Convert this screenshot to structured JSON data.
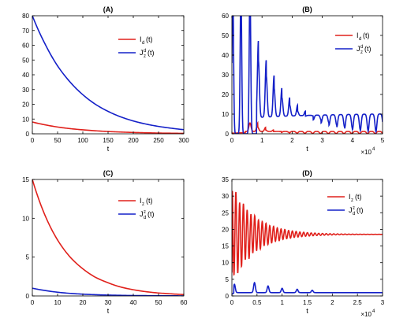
{
  "chart_data": [
    {
      "panel": "(A)",
      "type": "line",
      "title": "(A)",
      "xlabel": "t",
      "xlim": [
        0,
        300
      ],
      "ylim": [
        0,
        80
      ],
      "xticks": [
        "0",
        "50",
        "100",
        "150",
        "200",
        "250",
        "300"
      ],
      "yticks": [
        "0",
        "10",
        "20",
        "30",
        "40",
        "50",
        "60",
        "70",
        "80"
      ],
      "x_multiplier": "",
      "legend": {
        "position": "top-right"
      },
      "series": [
        {
          "name": "I_d(t)",
          "legend_main": "I",
          "legend_sub": "d",
          "legend_sup": "",
          "legend_tail": "(t)",
          "color": "#e0201b",
          "x": [
            0,
            25,
            50,
            75,
            100,
            125,
            150,
            175,
            200,
            225,
            250,
            275,
            300
          ],
          "y": [
            8.0,
            6.1,
            4.6,
            3.5,
            2.7,
            2.05,
            1.55,
            1.2,
            0.9,
            0.7,
            0.5,
            0.4,
            0.3
          ]
        },
        {
          "name": "J_z^d(t)",
          "legend_main": "J",
          "legend_sub": "z",
          "legend_sup": "d",
          "legend_tail": "(t)",
          "color": "#1420c8",
          "x": [
            0,
            25,
            50,
            75,
            100,
            125,
            150,
            175,
            200,
            225,
            250,
            275,
            300
          ],
          "y": [
            80.0,
            61.0,
            46.0,
            35.0,
            26.5,
            20.0,
            15.2,
            11.5,
            8.7,
            6.6,
            5.0,
            3.8,
            2.8
          ]
        }
      ]
    },
    {
      "panel": "(B)",
      "type": "line",
      "title": "(B)",
      "xlabel": "t",
      "xlim": [
        0,
        5
      ],
      "ylim": [
        0,
        60
      ],
      "xticks": [
        "0",
        "1",
        "2",
        "3",
        "4",
        "5"
      ],
      "yticks": [
        "0",
        "10",
        "20",
        "30",
        "40",
        "50",
        "60"
      ],
      "x_multiplier": "×10",
      "x_multiplier_exp": "4",
      "legend": {
        "position": "top-right"
      },
      "series": [
        {
          "name": "I_d(t)",
          "legend_main": "I",
          "legend_sub": "d",
          "legend_tail": "(t)",
          "legend_sup": "",
          "color": "#e0201b",
          "oscillation": {
            "mean": 1.2,
            "peak0": 5.5,
            "t0": 0.6,
            "period": 0.26,
            "decay": 0.8,
            "rise_from": 0.0
          }
        },
        {
          "name": "J_z^d(t)",
          "legend_main": "J",
          "legend_sub": "z",
          "legend_sup": "d",
          "legend_tail": "(t)",
          "color": "#1420c8",
          "oscillation": {
            "mean": 10.5,
            "peak0": 40,
            "t0": 0.88,
            "period": 0.26,
            "decay": 0.55,
            "initial_spikes": [
              0.03,
              0.3,
              0.6
            ]
          }
        }
      ]
    },
    {
      "panel": "(C)",
      "type": "line",
      "title": "(C)",
      "xlabel": "t",
      "xlim": [
        0,
        60
      ],
      "ylim": [
        0,
        15
      ],
      "xticks": [
        "0",
        "10",
        "20",
        "30",
        "40",
        "50",
        "60"
      ],
      "yticks": [
        "0",
        "5",
        "10",
        "15"
      ],
      "x_multiplier": "",
      "legend": {
        "position": "top-right"
      },
      "series": [
        {
          "name": "I_z(t)",
          "legend_main": "I",
          "legend_sub": "z",
          "legend_sup": "",
          "legend_tail": "(t)",
          "color": "#e0201b",
          "x": [
            0,
            5,
            10,
            15,
            20,
            25,
            30,
            35,
            40,
            45,
            50,
            55,
            60
          ],
          "y": [
            15.0,
            10.4,
            7.2,
            5.0,
            3.5,
            2.4,
            1.7,
            1.15,
            0.8,
            0.55,
            0.38,
            0.27,
            0.18
          ]
        },
        {
          "name": "J_d^z(t)",
          "legend_main": "J",
          "legend_sub": "d",
          "legend_sup": "z",
          "legend_tail": "(t)",
          "color": "#1420c8",
          "x": [
            0,
            5,
            10,
            15,
            20,
            25,
            30,
            35,
            40,
            45,
            50,
            55,
            60
          ],
          "y": [
            1.0,
            0.7,
            0.48,
            0.33,
            0.23,
            0.16,
            0.11,
            0.08,
            0.05,
            0.04,
            0.03,
            0.02,
            0.01
          ]
        }
      ]
    },
    {
      "panel": "(D)",
      "type": "line",
      "title": "(D)",
      "xlabel": "t",
      "xlim": [
        0,
        3
      ],
      "ylim": [
        0,
        35
      ],
      "xticks": [
        "0",
        "0.5",
        "1",
        "1.5",
        "2",
        "2.5",
        "3"
      ],
      "yticks": [
        "0",
        "5",
        "10",
        "15",
        "20",
        "25",
        "30",
        "35"
      ],
      "x_multiplier": "×10",
      "x_multiplier_exp": "4",
      "legend": {
        "position": "top-right"
      },
      "series": [
        {
          "name": "I_z(t)",
          "legend_main": "I",
          "legend_sub": "z",
          "legend_sup": "",
          "legend_tail": "(t)",
          "color": "#e0201b",
          "damped": {
            "mean": 18.5,
            "amp0": 14.5,
            "period": 0.075,
            "decay": 2.2,
            "start": 0.0
          }
        },
        {
          "name": "J_d^z(t)",
          "legend_main": "J",
          "legend_sub": "d",
          "legend_sup": "z",
          "legend_tail": "(t)",
          "color": "#1420c8",
          "damped": {
            "mean": 1.0,
            "spikes": [
              [
                0.05,
                2.5
              ],
              [
                0.45,
                3.0
              ],
              [
                0.72,
                2.0
              ],
              [
                1.0,
                1.3
              ],
              [
                1.3,
                1.0
              ],
              [
                1.6,
                0.7
              ]
            ]
          }
        }
      ]
    }
  ]
}
